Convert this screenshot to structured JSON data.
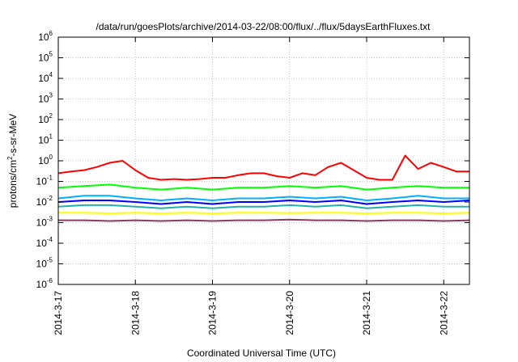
{
  "chart_data": {
    "type": "line",
    "title": "/data/run/goesPlots/archive/2014-03-22/08:00/flux/../flux/5daysEarthFluxes.txt",
    "xlabel": "Coordinated Universal Time (UTC)",
    "ylabel": "protons/cm²-s-sr-MeV",
    "ylabel_parts": {
      "pre": "protons/cm",
      "sup": "2",
      "post": "-s-sr-MeV"
    },
    "yscale": "log",
    "ylim": [
      1e-06,
      1000000.0
    ],
    "xlim": [
      "2014-03-17",
      "2014-03-22 08:00"
    ],
    "grid": true,
    "y_ticks": [
      {
        "value": 1e-06,
        "base": "10",
        "exp": "-6"
      },
      {
        "value": 1e-05,
        "base": "10",
        "exp": "-5"
      },
      {
        "value": 0.0001,
        "base": "10",
        "exp": "-4"
      },
      {
        "value": 0.001,
        "base": "10",
        "exp": "-3"
      },
      {
        "value": 0.01,
        "base": "10",
        "exp": "-2"
      },
      {
        "value": 0.1,
        "base": "10",
        "exp": "-1"
      },
      {
        "value": 1,
        "base": "10",
        "exp": "0"
      },
      {
        "value": 10.0,
        "base": "10",
        "exp": "1"
      },
      {
        "value": 100.0,
        "base": "10",
        "exp": "2"
      },
      {
        "value": 1000.0,
        "base": "10",
        "exp": "3"
      },
      {
        "value": 10000.0,
        "base": "10",
        "exp": "4"
      },
      {
        "value": 100000.0,
        "base": "10",
        "exp": "5"
      },
      {
        "value": 1000000.0,
        "base": "10",
        "exp": "6"
      }
    ],
    "x_ticks": [
      {
        "value": "2014-03-17",
        "label": "2014-3-17"
      },
      {
        "value": "2014-03-18",
        "label": "2014-3-18"
      },
      {
        "value": "2014-03-19",
        "label": "2014-3-19"
      },
      {
        "value": "2014-03-20",
        "label": "2014-3-20"
      },
      {
        "value": "2014-03-21",
        "label": "2014-3-21"
      },
      {
        "value": "2014-03-22",
        "label": "2014-3-22"
      }
    ],
    "series": [
      {
        "color": "#ff0000",
        "x": [
          "2014-03-17 00:00",
          "2014-03-17 04:00",
          "2014-03-17 08:00",
          "2014-03-17 12:00",
          "2014-03-17 16:00",
          "2014-03-17 20:00",
          "2014-03-18 00:00",
          "2014-03-18 04:00",
          "2014-03-18 08:00",
          "2014-03-18 12:00",
          "2014-03-18 16:00",
          "2014-03-18 20:00",
          "2014-03-19 00:00",
          "2014-03-19 04:00",
          "2014-03-19 08:00",
          "2014-03-19 12:00",
          "2014-03-19 16:00",
          "2014-03-19 20:00",
          "2014-03-20 00:00",
          "2014-03-20 04:00",
          "2014-03-20 08:00",
          "2014-03-20 12:00",
          "2014-03-20 16:00",
          "2014-03-20 20:00",
          "2014-03-21 00:00",
          "2014-03-21 04:00",
          "2014-03-21 08:00",
          "2014-03-21 12:00",
          "2014-03-21 16:00",
          "2014-03-21 20:00",
          "2014-03-22 00:00",
          "2014-03-22 04:00",
          "2014-03-22 08:00"
        ],
        "y": [
          0.25,
          0.3,
          0.35,
          0.5,
          0.8,
          1.0,
          0.35,
          0.15,
          0.12,
          0.13,
          0.12,
          0.13,
          0.15,
          0.15,
          0.2,
          0.25,
          0.25,
          0.18,
          0.15,
          0.25,
          0.2,
          0.5,
          0.8,
          0.35,
          0.15,
          0.12,
          0.12,
          1.8,
          0.4,
          0.8,
          0.5,
          0.3,
          0.3
        ]
      },
      {
        "color": "#00ff00",
        "x": [
          "2014-03-17 00:00",
          "2014-03-17 08:00",
          "2014-03-17 16:00",
          "2014-03-18 00:00",
          "2014-03-18 08:00",
          "2014-03-18 16:00",
          "2014-03-19 00:00",
          "2014-03-19 08:00",
          "2014-03-19 16:00",
          "2014-03-20 00:00",
          "2014-03-20 08:00",
          "2014-03-20 16:00",
          "2014-03-21 00:00",
          "2014-03-21 08:00",
          "2014-03-21 16:00",
          "2014-03-22 00:00",
          "2014-03-22 08:00"
        ],
        "y": [
          0.05,
          0.06,
          0.07,
          0.05,
          0.04,
          0.05,
          0.04,
          0.05,
          0.05,
          0.06,
          0.05,
          0.06,
          0.04,
          0.05,
          0.06,
          0.05,
          0.05
        ]
      },
      {
        "color": "#00b0ff",
        "x": [
          "2014-03-17 00:00",
          "2014-03-17 08:00",
          "2014-03-17 16:00",
          "2014-03-18 00:00",
          "2014-03-18 08:00",
          "2014-03-18 16:00",
          "2014-03-19 00:00",
          "2014-03-19 08:00",
          "2014-03-19 16:00",
          "2014-03-20 00:00",
          "2014-03-20 08:00",
          "2014-03-20 16:00",
          "2014-03-21 00:00",
          "2014-03-21 08:00",
          "2014-03-21 16:00",
          "2014-03-22 00:00",
          "2014-03-22 08:00"
        ],
        "y": [
          0.015,
          0.02,
          0.02,
          0.015,
          0.012,
          0.015,
          0.012,
          0.015,
          0.015,
          0.018,
          0.015,
          0.018,
          0.012,
          0.015,
          0.02,
          0.015,
          0.015
        ]
      },
      {
        "color": "#0000ff",
        "x": [
          "2014-03-17 00:00",
          "2014-03-17 08:00",
          "2014-03-17 16:00",
          "2014-03-18 00:00",
          "2014-03-18 08:00",
          "2014-03-18 16:00",
          "2014-03-19 00:00",
          "2014-03-19 08:00",
          "2014-03-19 16:00",
          "2014-03-20 00:00",
          "2014-03-20 08:00",
          "2014-03-20 16:00",
          "2014-03-21 00:00",
          "2014-03-21 08:00",
          "2014-03-21 16:00",
          "2014-03-22 00:00",
          "2014-03-22 08:00"
        ],
        "y": [
          0.01,
          0.012,
          0.012,
          0.01,
          0.008,
          0.01,
          0.008,
          0.01,
          0.01,
          0.012,
          0.01,
          0.012,
          0.008,
          0.01,
          0.012,
          0.01,
          0.012
        ]
      },
      {
        "color": "#20b2aa",
        "x": [
          "2014-03-17 00:00",
          "2014-03-17 08:00",
          "2014-03-17 16:00",
          "2014-03-18 00:00",
          "2014-03-18 08:00",
          "2014-03-18 16:00",
          "2014-03-19 00:00",
          "2014-03-19 08:00",
          "2014-03-19 16:00",
          "2014-03-20 00:00",
          "2014-03-20 08:00",
          "2014-03-20 16:00",
          "2014-03-21 00:00",
          "2014-03-21 08:00",
          "2014-03-21 16:00",
          "2014-03-22 00:00",
          "2014-03-22 08:00"
        ],
        "y": [
          0.006,
          0.007,
          0.007,
          0.006,
          0.005,
          0.006,
          0.005,
          0.006,
          0.006,
          0.007,
          0.006,
          0.007,
          0.005,
          0.006,
          0.007,
          0.006,
          0.006
        ]
      },
      {
        "color": "#ffff00",
        "x": [
          "2014-03-17 00:00",
          "2014-03-17 08:00",
          "2014-03-17 16:00",
          "2014-03-18 00:00",
          "2014-03-18 08:00",
          "2014-03-18 16:00",
          "2014-03-19 00:00",
          "2014-03-19 08:00",
          "2014-03-19 16:00",
          "2014-03-20 00:00",
          "2014-03-20 08:00",
          "2014-03-20 16:00",
          "2014-03-21 00:00",
          "2014-03-21 08:00",
          "2014-03-21 16:00",
          "2014-03-22 00:00",
          "2014-03-22 08:00"
        ],
        "y": [
          0.003,
          0.003,
          0.0028,
          0.003,
          0.0028,
          0.003,
          0.0028,
          0.003,
          0.003,
          0.0029,
          0.003,
          0.003,
          0.0028,
          0.003,
          0.003,
          0.0028,
          0.003
        ]
      },
      {
        "color": "#8b3a62",
        "x": [
          "2014-03-17 00:00",
          "2014-03-17 08:00",
          "2014-03-17 16:00",
          "2014-03-18 00:00",
          "2014-03-18 08:00",
          "2014-03-18 16:00",
          "2014-03-19 00:00",
          "2014-03-19 08:00",
          "2014-03-19 16:00",
          "2014-03-20 00:00",
          "2014-03-20 08:00",
          "2014-03-20 16:00",
          "2014-03-21 00:00",
          "2014-03-21 08:00",
          "2014-03-21 16:00",
          "2014-03-22 00:00",
          "2014-03-22 08:00"
        ],
        "y": [
          0.0013,
          0.0013,
          0.0012,
          0.0013,
          0.0012,
          0.0013,
          0.0012,
          0.0013,
          0.0013,
          0.0014,
          0.0013,
          0.0013,
          0.0012,
          0.0013,
          0.0013,
          0.0012,
          0.0013
        ]
      }
    ]
  }
}
